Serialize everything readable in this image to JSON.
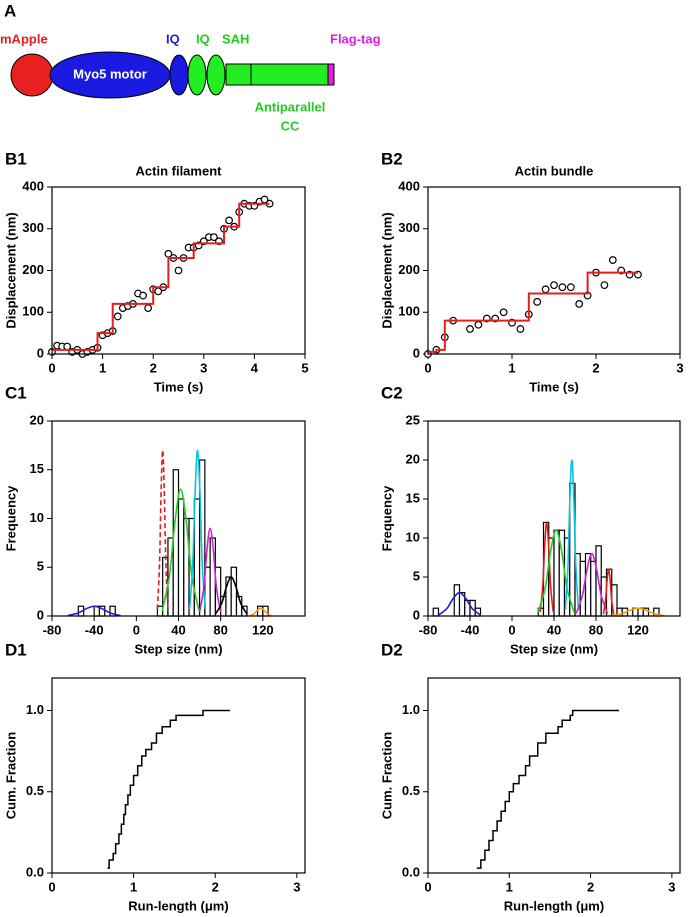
{
  "diagram": {
    "panel": "A",
    "mapple": "mApple",
    "motor": "Myo5 motor",
    "iq1": "IQ",
    "iq2": "IQ",
    "sah": "SAH",
    "flag": "Flag-tag",
    "cc": [
      "Antiparallel",
      "CC"
    ]
  },
  "chart_data": [
    {
      "type": "scatter",
      "panel": "B1",
      "title": "Actin filament",
      "x_label": "Time (s)",
      "y_label": "Displacement (nm)",
      "xlim": [
        0,
        5
      ],
      "ylim": [
        0,
        400
      ],
      "xticks": [
        0,
        1,
        2,
        3,
        4,
        5
      ],
      "yticks": [
        0,
        100,
        200,
        300,
        400
      ],
      "series": [
        {
          "mode": "markers",
          "color": "#000000",
          "x": [
            0.0,
            0.1,
            0.2,
            0.3,
            0.4,
            0.5,
            0.6,
            0.7,
            0.8,
            0.9,
            1.0,
            1.1,
            1.2,
            1.3,
            1.4,
            1.5,
            1.6,
            1.7,
            1.8,
            1.9,
            2.0,
            2.1,
            2.2,
            2.3,
            2.4,
            2.5,
            2.6,
            2.7,
            2.8,
            2.9,
            3.0,
            3.1,
            3.2,
            3.3,
            3.4,
            3.5,
            3.6,
            3.7,
            3.8,
            3.9,
            4.0,
            4.1,
            4.2,
            4.3
          ],
          "values": [
            5,
            20,
            18,
            18,
            5,
            10,
            0,
            5,
            10,
            15,
            45,
            50,
            55,
            90,
            110,
            115,
            120,
            145,
            140,
            110,
            155,
            150,
            160,
            240,
            230,
            200,
            230,
            255,
            255,
            260,
            270,
            280,
            280,
            270,
            300,
            320,
            305,
            340,
            360,
            355,
            355,
            365,
            370,
            360
          ]
        },
        {
          "mode": "lines",
          "color": "#e02020",
          "x": [
            0,
            0.9,
            0.9,
            1.2,
            1.2,
            2.0,
            2.0,
            2.3,
            2.3,
            2.8,
            2.8,
            3.4,
            3.4,
            3.7,
            3.7,
            4.3
          ],
          "values": [
            10,
            10,
            50,
            50,
            120,
            120,
            160,
            160,
            230,
            230,
            265,
            265,
            305,
            305,
            360,
            360
          ]
        }
      ]
    },
    {
      "type": "scatter",
      "panel": "B2",
      "title": "Actin bundle",
      "x_label": "Time (s)",
      "y_label": "Displacement (nm)",
      "xlim": [
        0,
        3
      ],
      "ylim": [
        0,
        400
      ],
      "xticks": [
        0,
        1,
        2,
        3
      ],
      "yticks": [
        0,
        100,
        200,
        300,
        400
      ],
      "series": [
        {
          "mode": "markers",
          "color": "#000000",
          "x": [
            0,
            0.1,
            0.2,
            0.3,
            0.5,
            0.6,
            0.7,
            0.8,
            0.9,
            1.0,
            1.1,
            1.2,
            1.3,
            1.4,
            1.5,
            1.6,
            1.7,
            1.8,
            1.9,
            2.0,
            2.1,
            2.2,
            2.3,
            2.4,
            2.5
          ],
          "values": [
            0,
            10,
            40,
            80,
            60,
            70,
            85,
            85,
            100,
            75,
            60,
            95,
            125,
            155,
            165,
            160,
            160,
            120,
            140,
            195,
            165,
            225,
            200,
            190,
            190
          ]
        },
        {
          "mode": "lines",
          "color": "#e02020",
          "x": [
            0,
            0.1,
            0.1,
            0.2,
            0.2,
            1.2,
            1.2,
            1.9,
            1.9,
            2.5
          ],
          "values": [
            5,
            5,
            10,
            10,
            80,
            80,
            145,
            145,
            195,
            195
          ]
        }
      ]
    },
    {
      "type": "histogram",
      "panel": "C1",
      "x_label": "Step size (nm)",
      "y_label": "Frequency",
      "xlim": [
        -80,
        160
      ],
      "ylim": [
        0,
        20
      ],
      "xticks": [
        -80,
        -40,
        0,
        40,
        80,
        120
      ],
      "yticks": [
        0,
        5,
        10,
        15,
        20
      ],
      "bins": [
        -60,
        -55,
        -50,
        -45,
        -40,
        -35,
        -30,
        -25,
        -20,
        -15,
        -10,
        -5,
        0,
        5,
        10,
        15,
        20,
        25,
        30,
        35,
        40,
        45,
        50,
        55,
        60,
        65,
        70,
        75,
        80,
        85,
        90,
        95,
        100,
        105,
        110,
        115,
        120,
        125
      ],
      "values": [
        0,
        1,
        0,
        0,
        1,
        1,
        0,
        1,
        0,
        0,
        0,
        0,
        0,
        0,
        0,
        0,
        1,
        6,
        8,
        15,
        12,
        10,
        10,
        12,
        16,
        5,
        8,
        5,
        2,
        4,
        5,
        2,
        1,
        0,
        0,
        1,
        1
      ],
      "fits": [
        {
          "color": "#1f1fd0",
          "x": [
            -65,
            -55,
            -47.5,
            -40,
            -32.5,
            -25,
            -15
          ],
          "values": [
            0.04,
            0.32,
            0.75,
            1,
            0.75,
            0.32,
            0.04
          ]
        },
        {
          "color": "#e02020",
          "dashed": true,
          "x": [
            20,
            22,
            23.5,
            25,
            26.5,
            28,
            30
          ],
          "values": [
            0.7,
            5.4,
            12.8,
            17,
            12.8,
            5.4,
            0.7
          ]
        },
        {
          "color": "#22cc22",
          "x": [
            24.5,
            31.5,
            36.8,
            42,
            47.3,
            52.5,
            59.5
          ],
          "values": [
            0.5,
            4.2,
            9.8,
            13,
            9.8,
            4.2,
            0.5
          ]
        },
        {
          "color": "#00c8e0",
          "x": [
            50.5,
            53.5,
            55.8,
            58,
            60.3,
            62.5,
            65.5
          ],
          "values": [
            0.7,
            5.4,
            12.8,
            17,
            12.8,
            5.4,
            0.7
          ]
        },
        {
          "color": "#d020d0",
          "x": [
            60,
            64,
            67,
            70,
            73,
            76,
            80
          ],
          "values": [
            0.4,
            2.9,
            6.8,
            9,
            6.8,
            2.9,
            0.4
          ]
        },
        {
          "color": "#000000",
          "x": [
            75,
            81,
            85.5,
            90,
            94.5,
            99,
            105
          ],
          "values": [
            0.2,
            1.3,
            3,
            4,
            3,
            1.3,
            0.2
          ]
        },
        {
          "color": "#ff9900",
          "x": [
            108,
            112,
            115,
            118,
            121,
            124,
            128
          ],
          "values": [
            0.03,
            0.26,
            0.6,
            0.8,
            0.6,
            0.26,
            0.03
          ]
        }
      ]
    },
    {
      "type": "histogram",
      "panel": "C2",
      "x_label": "Step size (nm)",
      "y_label": "Frequency",
      "xlim": [
        -80,
        160
      ],
      "ylim": [
        0,
        25
      ],
      "xticks": [
        -80,
        -40,
        0,
        40,
        80,
        120
      ],
      "yticks": [
        0,
        5,
        10,
        15,
        20,
        25
      ],
      "bins": [
        -75,
        -70,
        -65,
        -60,
        -55,
        -50,
        -45,
        -40,
        -35,
        -30,
        -25,
        -20,
        -15,
        -10,
        -5,
        0,
        5,
        10,
        15,
        20,
        25,
        30,
        35,
        40,
        45,
        50,
        55,
        60,
        65,
        70,
        75,
        80,
        85,
        90,
        95,
        100,
        105,
        110,
        115,
        120,
        125,
        130,
        135,
        140
      ],
      "values": [
        1,
        0,
        0,
        0,
        4,
        3,
        2,
        2,
        1,
        0,
        0,
        0,
        0,
        0,
        0,
        0,
        0,
        0,
        0,
        0,
        1,
        12,
        10,
        11,
        11,
        10,
        17,
        8,
        7,
        8,
        7,
        9,
        5,
        6,
        4,
        1,
        1,
        0,
        1,
        1,
        1,
        0,
        1
      ],
      "fits": [
        {
          "color": "#1f1fd0",
          "x": [
            -70,
            -62,
            -56,
            -50,
            -44,
            -38,
            -30
          ],
          "values": [
            0.12,
            0.96,
            2.25,
            3,
            2.25,
            0.96,
            0.12
          ]
        },
        {
          "color": "#e02020",
          "x": [
            26.8,
            29.3,
            31.1,
            33,
            34.9,
            36.8,
            39.3
          ],
          "values": [
            0.5,
            3.8,
            9,
            12,
            9,
            3.8,
            0.5
          ]
        },
        {
          "color": "#22cc22",
          "x": [
            24.5,
            31.5,
            36.8,
            42,
            47.3,
            52.5,
            59.5
          ],
          "values": [
            0.4,
            3.5,
            8.3,
            11,
            8.3,
            3.5,
            0.4
          ]
        },
        {
          "color": "#00c8e0",
          "x": [
            50.8,
            53.3,
            55.1,
            57,
            58.9,
            60.8,
            63.3
          ],
          "values": [
            0.8,
            6.4,
            15,
            20,
            15,
            6.4,
            0.8
          ]
        },
        {
          "color": "#d020d0",
          "x": [
            61,
            67,
            71.5,
            76,
            80.5,
            85,
            91
          ],
          "values": [
            0.3,
            2.6,
            6,
            8,
            6,
            2.6,
            0.3
          ]
        },
        {
          "color": "#e02020",
          "x": [
            87,
            89,
            90.5,
            92,
            93.5,
            95,
            97
          ],
          "values": [
            0.24,
            1.9,
            4.5,
            6,
            4.5,
            1.9,
            0.24
          ]
        },
        {
          "color": "#ff9900",
          "x": [
            95,
            105,
            112.5,
            120,
            127.5,
            135,
            145
          ],
          "values": [
            0.04,
            0.32,
            0.75,
            1,
            0.75,
            0.32,
            0.04
          ]
        }
      ]
    },
    {
      "type": "line",
      "step": "post",
      "panel": "D1",
      "x_label": "Run-length (μm)",
      "y_label": "Cum. Fraction",
      "xlim": [
        0,
        3.1
      ],
      "ylim": [
        0,
        1.2
      ],
      "xticks": [
        0,
        1,
        2,
        3
      ],
      "yticks": [
        {
          "value": 0,
          "label": "0.0"
        },
        {
          "value": 0.5,
          "label": "0.5"
        },
        {
          "value": 1,
          "label": "1.0"
        }
      ],
      "series": [
        {
          "color": "#000000",
          "x": [
            0.68,
            0.7,
            0.75,
            0.78,
            0.82,
            0.85,
            0.88,
            0.9,
            0.93,
            0.96,
            1.0,
            1.05,
            1.1,
            1.15,
            1.22,
            1.28,
            1.35,
            1.45,
            1.52,
            1.8,
            1.85,
            2.18
          ],
          "values": [
            0.03,
            0.08,
            0.12,
            0.18,
            0.24,
            0.3,
            0.36,
            0.42,
            0.48,
            0.54,
            0.6,
            0.66,
            0.72,
            0.76,
            0.8,
            0.86,
            0.9,
            0.94,
            0.97,
            0.97,
            1.0,
            1.0
          ]
        }
      ]
    },
    {
      "type": "line",
      "step": "post",
      "panel": "D2",
      "x_label": "Run-length (μm)",
      "y_label": "Cum. Fraction",
      "xlim": [
        0,
        3.1
      ],
      "ylim": [
        0,
        1.2
      ],
      "xticks": [
        0,
        1,
        2,
        3
      ],
      "yticks": [
        {
          "value": 0,
          "label": "0.0"
        },
        {
          "value": 0.5,
          "label": "0.5"
        },
        {
          "value": 1,
          "label": "1.0"
        }
      ],
      "series": [
        {
          "color": "#000000",
          "x": [
            0.6,
            0.65,
            0.7,
            0.75,
            0.8,
            0.85,
            0.9,
            0.95,
            1.0,
            1.05,
            1.12,
            1.2,
            1.25,
            1.35,
            1.45,
            1.6,
            1.65,
            1.75,
            1.78,
            2.35
          ],
          "values": [
            0.03,
            0.08,
            0.14,
            0.2,
            0.26,
            0.32,
            0.38,
            0.44,
            0.5,
            0.55,
            0.6,
            0.66,
            0.72,
            0.8,
            0.86,
            0.9,
            0.94,
            0.97,
            1.0,
            1.0
          ]
        }
      ]
    }
  ]
}
